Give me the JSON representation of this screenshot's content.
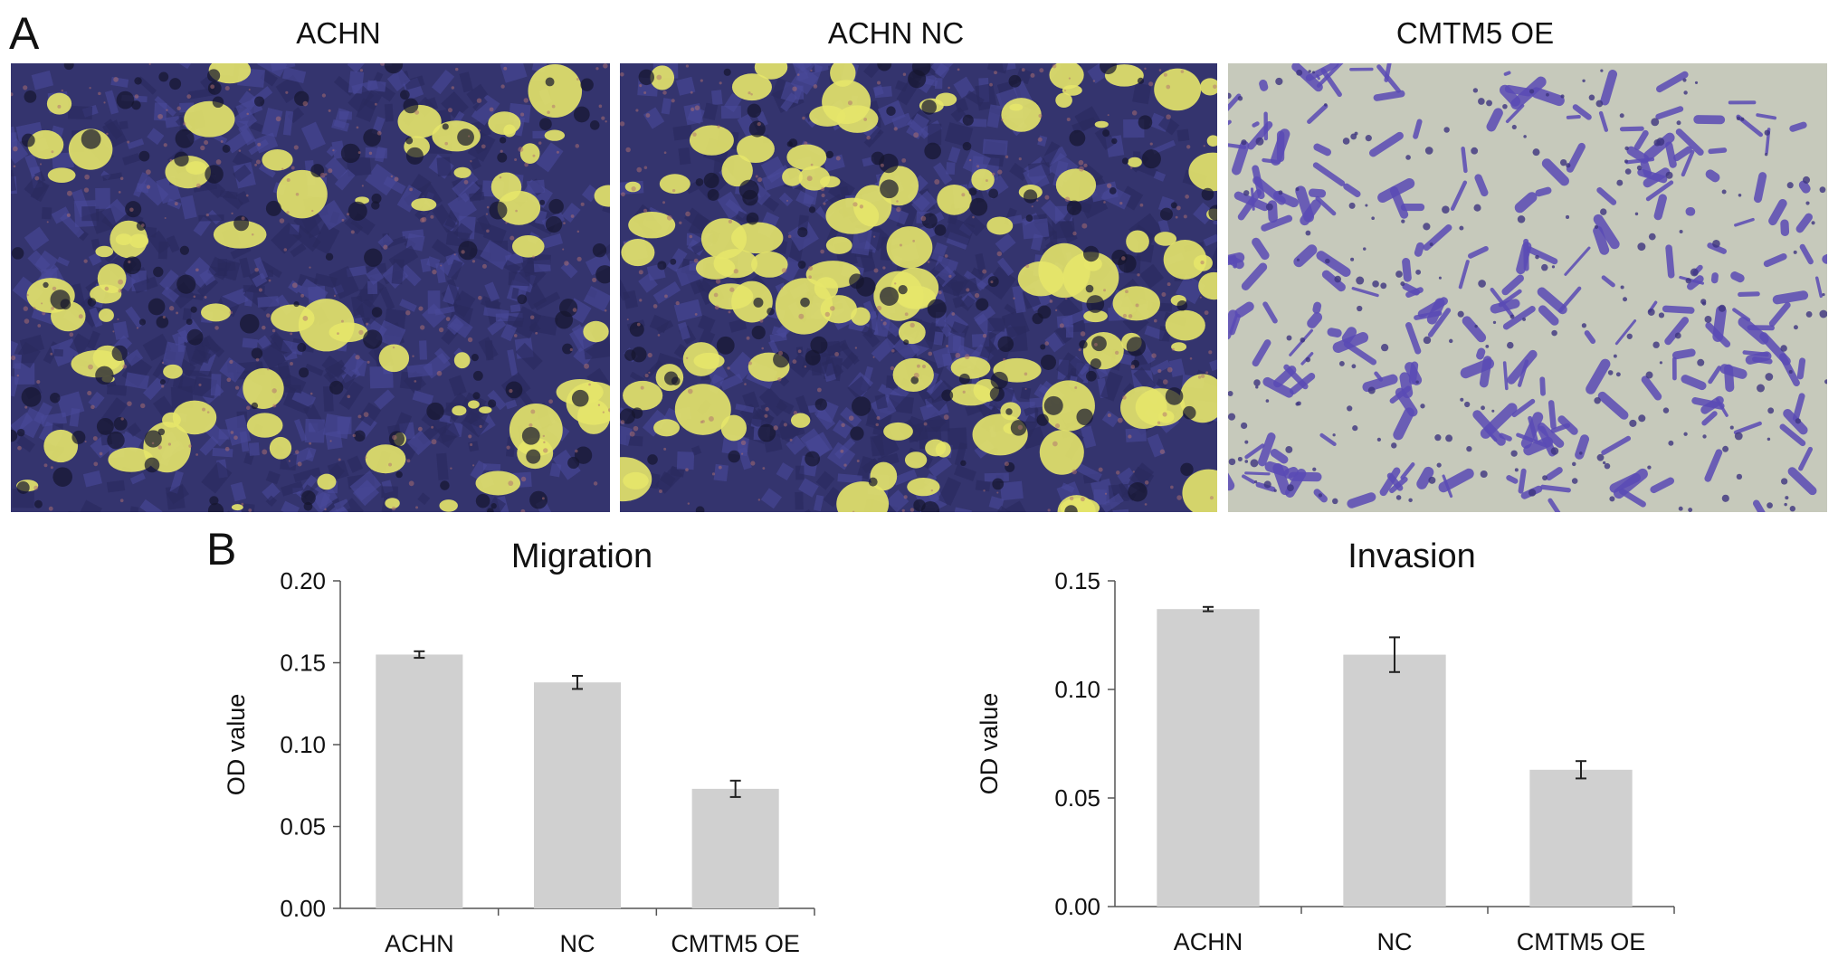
{
  "panel_a": {
    "letter": "A",
    "images": [
      {
        "title": "ACHN",
        "stain": "dense"
      },
      {
        "title": "ACHN NC",
        "stain": "dense"
      },
      {
        "title": "CMTM5 OE",
        "stain": "sparse"
      }
    ]
  },
  "panel_b": {
    "letter": "B"
  },
  "colors": {
    "bar": "#d0d0d0",
    "axis": "#555555",
    "stain_purple": "#3a3a8a",
    "stain_yellow": "#e8e870",
    "background_light": "#c8cbbd",
    "stain_violet": "#5a4bb5"
  },
  "chart_data": [
    {
      "type": "bar",
      "title": "Migration",
      "xlabel": "",
      "ylabel": "OD  value",
      "categories": [
        "ACHN",
        "NC",
        "CMTM5 OE"
      ],
      "values": [
        0.155,
        0.138,
        0.073
      ],
      "errors": [
        0.002,
        0.004,
        0.005
      ],
      "ylim": [
        0,
        0.2
      ],
      "yticks": [
        "0.00",
        "0.05",
        "0.10",
        "0.15",
        "0.20"
      ]
    },
    {
      "type": "bar",
      "title": "Invasion",
      "xlabel": "",
      "ylabel": "OD value",
      "categories": [
        "ACHN",
        "NC",
        "CMTM5 OE"
      ],
      "values": [
        0.137,
        0.116,
        0.063
      ],
      "errors": [
        0.001,
        0.008,
        0.004
      ],
      "ylim": [
        0,
        0.15
      ],
      "yticks": [
        "0.00",
        "0.05",
        "0.10",
        "0.15"
      ]
    }
  ]
}
